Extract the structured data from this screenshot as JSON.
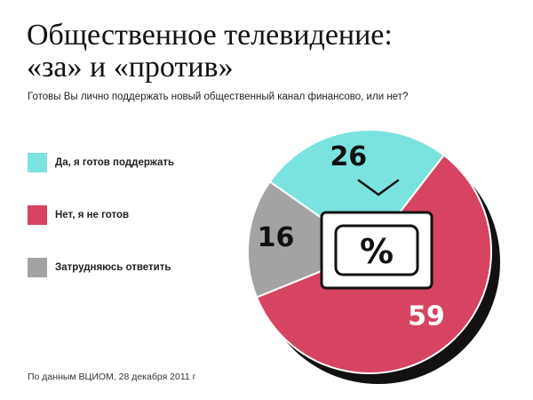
{
  "header": {
    "title_line1": "Общественное телевидение:",
    "title_line2": "«за» и «против»",
    "subtitle": "Готовы Вы лично поддержать новый общественный канал финансово, или нет?"
  },
  "footer": {
    "source": "По данным ВЦИОМ, 28 декабря 2011 г"
  },
  "center_icon": {
    "name": "tv-icon",
    "text": "%"
  },
  "chart_data": {
    "type": "pie",
    "title": "Общественное телевидение: «за» и «против»",
    "subtitle": "Готовы Вы лично поддержать новый общественный канал финансово, или нет?",
    "legend_position": "left",
    "slices": [
      {
        "label": "Да, я готов поддержать",
        "value": 26,
        "color": "#7ae3e0"
      },
      {
        "label": "Нет, я не готов",
        "value": 59,
        "color": "#d64461"
      },
      {
        "label": "Затрудняюсь ответить",
        "value": 16,
        "color": "#a3a3a3"
      }
    ]
  }
}
